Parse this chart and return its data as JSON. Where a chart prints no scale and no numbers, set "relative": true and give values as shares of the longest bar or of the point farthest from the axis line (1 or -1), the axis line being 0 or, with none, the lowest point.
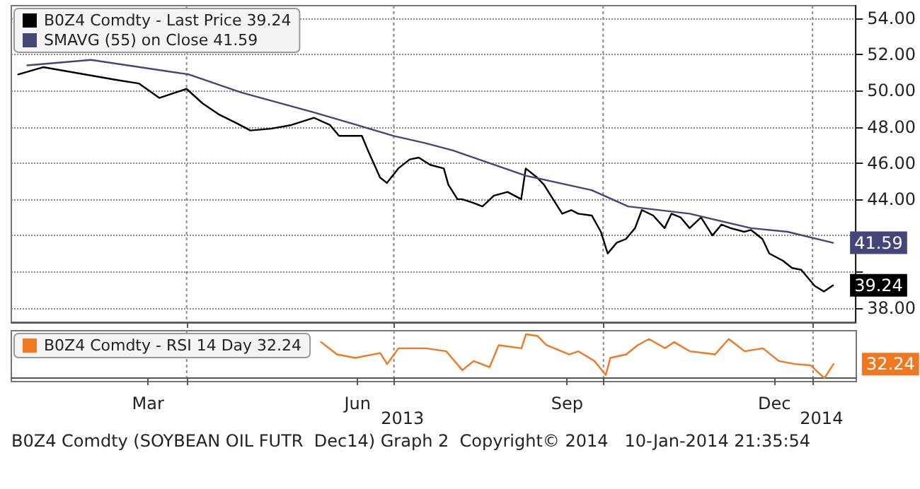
{
  "chart_data": [
    {
      "type": "line",
      "legend": "top left",
      "grid": true,
      "tick_labels": "y",
      "marker": "none",
      "line_style": "solid",
      "xlim": [
        "2013-01-14",
        "2014-01-20"
      ],
      "xticks": [
        {
          "value": "2013-04-01",
          "label": null
        },
        {
          "value": "2013-07-01",
          "label": null
        },
        {
          "value": "2013-10-01",
          "label": null
        },
        {
          "value": "2014-01-01",
          "label": null
        }
      ],
      "ylim": [
        37.2,
        54.7
      ],
      "yticks": [
        {
          "value": 38,
          "label": "38.00"
        },
        {
          "value": 40,
          "label": null
        },
        {
          "value": 42,
          "label": null
        },
        {
          "value": 44,
          "label": "44.00"
        },
        {
          "value": 46,
          "label": "46.00"
        },
        {
          "value": 48,
          "label": "48.00"
        },
        {
          "value": 50,
          "label": "50.00"
        },
        {
          "value": 52,
          "label": "52.00"
        },
        {
          "value": 54,
          "label": "54.00"
        }
      ],
      "series": [
        {
          "name": "B0Z4 Comdty - Last Price 39.24",
          "color": "#000000",
          "x": [
            "2013-01-17",
            "2013-01-28",
            "2013-03-01",
            "2013-03-11",
            "2013-03-20",
            "2013-04-01",
            "2013-04-08",
            "2013-04-15",
            "2013-04-23",
            "2013-04-29",
            "2013-05-08",
            "2013-05-17",
            "2013-05-27",
            "2013-06-03",
            "2013-06-07",
            "2013-06-17",
            "2013-06-20",
            "2013-06-25",
            "2013-06-28",
            "2013-07-03",
            "2013-07-08",
            "2013-07-12",
            "2013-07-17",
            "2013-07-23",
            "2013-07-25",
            "2013-07-29",
            "2013-07-31",
            "2013-08-05",
            "2013-08-09",
            "2013-08-14",
            "2013-08-20",
            "2013-08-26",
            "2013-08-28",
            "2013-09-02",
            "2013-09-05",
            "2013-09-09",
            "2013-09-13",
            "2013-09-17",
            "2013-09-20",
            "2013-09-26",
            "2013-09-30",
            "2013-10-03",
            "2013-10-07",
            "2013-10-11",
            "2013-10-15",
            "2013-10-18",
            "2013-10-23",
            "2013-10-28",
            "2013-10-31",
            "2013-11-04",
            "2013-11-08",
            "2013-11-13",
            "2013-11-18",
            "2013-11-22",
            "2013-11-26",
            "2013-12-02",
            "2013-12-05",
            "2013-12-10",
            "2013-12-13",
            "2013-12-19",
            "2013-12-23",
            "2013-12-27",
            "2014-01-02",
            "2014-01-06",
            "2014-01-10"
          ],
          "values": [
            50.9,
            51.3,
            50.6,
            50.4,
            49.6,
            50.1,
            49.3,
            48.7,
            48.2,
            47.8,
            47.9,
            48.1,
            48.5,
            48.1,
            47.5,
            47.5,
            46.6,
            45.2,
            44.9,
            45.7,
            46.2,
            46.3,
            45.9,
            45.7,
            44.8,
            44.0,
            44.0,
            43.8,
            43.6,
            44.2,
            44.4,
            44.0,
            45.7,
            45.2,
            44.8,
            44.0,
            43.2,
            43.4,
            43.2,
            43.1,
            42.2,
            41.0,
            41.6,
            41.8,
            42.4,
            43.4,
            43.1,
            42.4,
            43.2,
            43.0,
            42.4,
            43.0,
            42.0,
            42.6,
            42.4,
            42.2,
            42.3,
            41.8,
            41.0,
            40.6,
            40.2,
            40.1,
            39.2,
            38.9,
            39.24
          ],
          "value_labels": [
            null,
            null,
            null,
            null,
            null,
            null,
            null,
            null,
            null,
            null,
            null,
            null,
            null,
            null,
            null,
            null,
            null,
            null,
            null,
            null,
            null,
            null,
            null,
            null,
            null,
            null,
            null,
            null,
            null,
            null,
            null,
            null,
            null,
            null,
            null,
            null,
            null,
            null,
            null,
            null,
            null,
            null,
            null,
            null,
            null,
            null,
            null,
            null,
            null,
            null,
            null,
            null,
            null,
            null,
            null,
            null,
            null,
            null,
            null,
            null,
            null,
            null,
            null,
            null,
            "39.24"
          ]
        },
        {
          "name": "SMAVG (55) on Close 41.59",
          "color": "#45457a",
          "x": [
            "2013-01-21",
            "2013-02-18",
            "2013-04-02",
            "2013-04-25",
            "2013-05-27",
            "2013-07-01",
            "2013-07-15",
            "2013-07-27",
            "2013-08-28",
            "2013-09-26",
            "2013-10-12",
            "2013-11-08",
            "2013-12-05",
            "2013-12-21",
            "2014-01-10"
          ],
          "values": [
            51.4,
            51.7,
            50.9,
            49.9,
            48.8,
            47.5,
            47.1,
            46.7,
            45.3,
            44.5,
            43.6,
            43.2,
            42.4,
            42.2,
            41.59
          ],
          "value_labels": [
            null,
            null,
            null,
            null,
            null,
            null,
            null,
            null,
            null,
            null,
            null,
            null,
            null,
            null,
            "41.59"
          ]
        }
      ]
    },
    {
      "type": "line",
      "relative": true,
      "legend": "top left",
      "grid": "x",
      "tick_labels": "x",
      "marker": "none",
      "line_style": "solid",
      "xlim": [
        "2013-01-14",
        "2014-01-20"
      ],
      "xticks": [
        {
          "value": "2013-03-15",
          "label": "Mar"
        },
        {
          "value": "2013-04-01",
          "label": null
        },
        {
          "value": "2013-06-15",
          "label": "Jun"
        },
        {
          "value": "2013-07-01",
          "label": null
        },
        {
          "value": "2013-09-15",
          "label": "Sep"
        },
        {
          "value": "2013-10-01",
          "label": null
        },
        {
          "value": "2013-12-15",
          "label": "Dec"
        },
        {
          "value": "2014-01-01",
          "label": null
        }
      ],
      "series": [
        {
          "name": "B0Z4 Comdty - RSI 14 Day 32.24",
          "color": "#f07820",
          "x": [
            "2013-05-30",
            "2013-06-06",
            "2013-06-14",
            "2013-06-25",
            "2013-06-28",
            "2013-07-03",
            "2013-07-15",
            "2013-07-24",
            "2013-07-31",
            "2013-08-05",
            "2013-08-12",
            "2013-08-16",
            "2013-08-26",
            "2013-08-28",
            "2013-09-02",
            "2013-09-06",
            "2013-09-16",
            "2013-09-20",
            "2013-09-27",
            "2013-10-02",
            "2013-10-04",
            "2013-10-11",
            "2013-10-16",
            "2013-10-21",
            "2013-10-28",
            "2013-11-01",
            "2013-11-08",
            "2013-11-19",
            "2013-11-25",
            "2013-12-02",
            "2013-12-10",
            "2013-12-17",
            "2013-12-24",
            "2013-12-31",
            "2014-01-06",
            "2014-01-10"
          ],
          "values": [
            0.82,
            0.54,
            0.46,
            0.57,
            0.32,
            0.68,
            0.68,
            0.61,
            0.18,
            0.39,
            0.25,
            0.75,
            0.68,
            1,
            0.96,
            0.75,
            0.54,
            0.61,
            0.39,
            0.07,
            0.46,
            0.54,
            0.75,
            0.89,
            0.68,
            0.82,
            0.61,
            0.54,
            0.89,
            0.61,
            0.68,
            0.39,
            0.32,
            0.29,
            0,
            0.32
          ]
        }
      ],
      "annotations": [
        {
          "text": "32.24",
          "x": "2014-01-10",
          "y": 0.32
        },
        "2013",
        "2014",
        "B0Z4 Comdty (SOYBEAN OIL FUTR  Dec14) Graph 2  Copyright© 2014   10-Jan-2014 21:35:54"
      ]
    }
  ]
}
